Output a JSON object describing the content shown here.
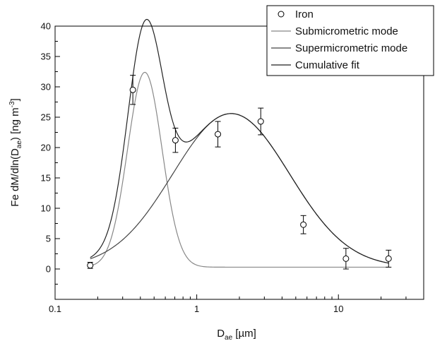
{
  "chart_data": {
    "type": "scatter",
    "title": "",
    "xlabel_main": "D",
    "xlabel_sub": "ae",
    "xlabel_unit": " [µm]",
    "ylabel_main": "Fe dM/dln(D",
    "ylabel_sub": "ae",
    "ylabel_unit": ") [ng m",
    "ylabel_sup": "-3",
    "ylabel_close": "]",
    "x_scale": "log",
    "xlim": [
      0.1,
      40
    ],
    "ylim": [
      -5,
      40
    ],
    "x_ticks": [
      {
        "value": 0.1,
        "label": "0.1"
      },
      {
        "value": 1,
        "label": "1"
      },
      {
        "value": 10,
        "label": "10"
      }
    ],
    "y_ticks": [
      {
        "value": 0,
        "label": "0"
      },
      {
        "value": 5,
        "label": "5"
      },
      {
        "value": 10,
        "label": "10"
      },
      {
        "value": 15,
        "label": "15"
      },
      {
        "value": 20,
        "label": "20"
      },
      {
        "value": 25,
        "label": "25"
      },
      {
        "value": 30,
        "label": "30"
      },
      {
        "value": 35,
        "label": "35"
      },
      {
        "value": 40,
        "label": "40"
      }
    ],
    "grid": false,
    "legend_position": "top-right",
    "legend": [
      {
        "label": "Iron",
        "kind": "marker"
      },
      {
        "label": "Submicrometric mode",
        "kind": "line",
        "color": "#888888"
      },
      {
        "label": "Supermicrometric mode",
        "kind": "line",
        "color": "#444444"
      },
      {
        "label": "Cumulative fit",
        "kind": "line",
        "color": "#222222"
      }
    ],
    "points": [
      {
        "x": 0.177,
        "y": 0.6,
        "err": 0.5
      },
      {
        "x": 0.354,
        "y": 29.5,
        "err": 2.4
      },
      {
        "x": 0.707,
        "y": 21.2,
        "err": 2.0
      },
      {
        "x": 1.41,
        "y": 22.2,
        "err": 2.1
      },
      {
        "x": 2.83,
        "y": 24.3,
        "err": 2.2
      },
      {
        "x": 5.66,
        "y": 7.3,
        "err": 1.5
      },
      {
        "x": 11.3,
        "y": 1.7,
        "err": 1.7
      },
      {
        "x": 22.6,
        "y": 1.7,
        "err": 1.4
      }
    ],
    "modes": {
      "baseline": 0.3,
      "submicrometric": {
        "amplitude": 32.1,
        "center": 0.43,
        "sigma_ln": 0.28,
        "color": "#888888"
      },
      "supermicrometric": {
        "amplitude": 25.3,
        "center": 1.75,
        "sigma_ln": 0.95,
        "color": "#444444"
      },
      "cumulative_color": "#222222"
    },
    "curve_x_range": [
      0.177,
      22.6
    ]
  }
}
